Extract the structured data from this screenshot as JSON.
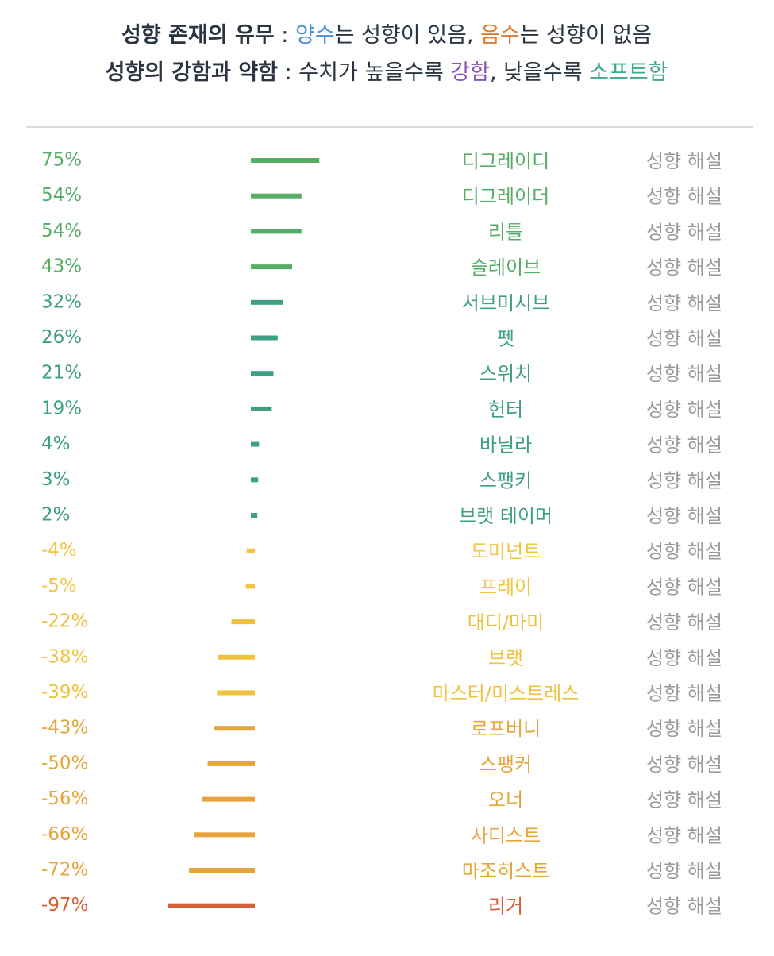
{
  "header": {
    "lines": [
      {
        "segments": [
          {
            "text": "성향 존재의 유무",
            "color": "#2b3441",
            "bold": true
          },
          {
            "text": " : ",
            "color": "#2b3441"
          },
          {
            "text": "양수",
            "color": "#4a8fd6"
          },
          {
            "text": "는 성향이 있음, ",
            "color": "#2b3441"
          },
          {
            "text": "음수",
            "color": "#e07b2e"
          },
          {
            "text": "는 성향이 없음",
            "color": "#2b3441"
          }
        ]
      },
      {
        "segments": [
          {
            "text": "성향의 강함과 약함",
            "color": "#2b3441",
            "bold": true
          },
          {
            "text": " : 수치가 높을수록 ",
            "color": "#2b3441"
          },
          {
            "text": "강함",
            "color": "#8a55b0"
          },
          {
            "text": ", 낮을수록 ",
            "color": "#2b3441"
          },
          {
            "text": "소프트함",
            "color": "#3fa98a"
          }
        ]
      }
    ]
  },
  "chart_data": {
    "type": "bar",
    "categories": [
      "디그레이디",
      "디그레이더",
      "리틀",
      "슬레이브",
      "서브미시브",
      "펫",
      "스위치",
      "헌터",
      "바닐라",
      "스팽키",
      "브랫 테이머",
      "도미넌트",
      "프레이",
      "대디/마미",
      "브랫",
      "마스터/미스트레스",
      "로프버니",
      "스팽커",
      "오너",
      "사디스트",
      "마조히스트",
      "리거"
    ],
    "values": [
      75,
      54,
      54,
      43,
      32,
      26,
      21,
      19,
      4,
      3,
      2,
      -4,
      -5,
      -22,
      -38,
      -39,
      -43,
      -50,
      -56,
      -66,
      -72,
      -97
    ],
    "value_labels": [
      "75%",
      "54%",
      "54%",
      "43%",
      "32%",
      "26%",
      "21%",
      "19%",
      "4%",
      "3%",
      "2%",
      "-4%",
      "-5%",
      "-22%",
      "-38%",
      "-39%",
      "-43%",
      "-50%",
      "-56%",
      "-66%",
      "-72%",
      "-97%"
    ],
    "colors": [
      "#55ad66",
      "#55ad66",
      "#55ad66",
      "#55ad66",
      "#3e9f85",
      "#3e9f85",
      "#3e9f85",
      "#3e9f85",
      "#3e9f85",
      "#3e9f85",
      "#3e9f85",
      "#f2c640",
      "#f2c640",
      "#f0bf3e",
      "#f0c23e",
      "#f0c23e",
      "#e6a53c",
      "#e6a53c",
      "#e6a53c",
      "#e6a53c",
      "#e6a53c",
      "#d65f38"
    ],
    "links": [
      "성향 해설",
      "성향 해설",
      "성향 해설",
      "성향 해설",
      "성향 해설",
      "성향 해설",
      "성향 해설",
      "성향 해설",
      "성향 해설",
      "성향 해설",
      "성향 해설",
      "성향 해설",
      "성향 해설",
      "성향 해설",
      "성향 해설",
      "성향 해설",
      "성향 해설",
      "성향 해설",
      "성향 해설",
      "성향 해설",
      "성향 해설",
      "성향 해설"
    ],
    "link_color": "#9a9a9a"
  }
}
